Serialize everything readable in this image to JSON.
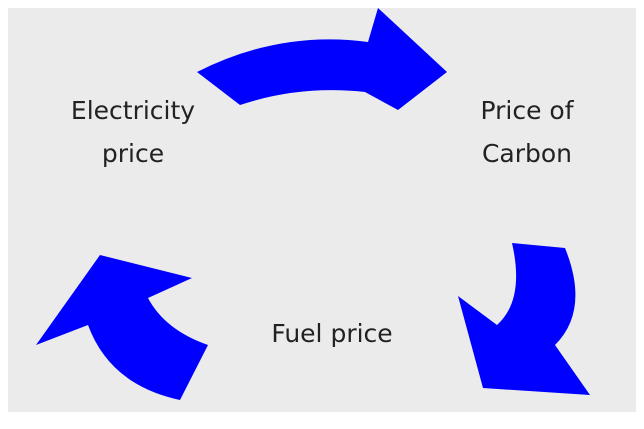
{
  "nodes": [
    {
      "lines": [
        "Electricity",
        "price"
      ]
    },
    {
      "lines": [
        "Price of",
        "Carbon"
      ]
    },
    {
      "lines": [
        "Fuel price"
      ]
    }
  ]
}
